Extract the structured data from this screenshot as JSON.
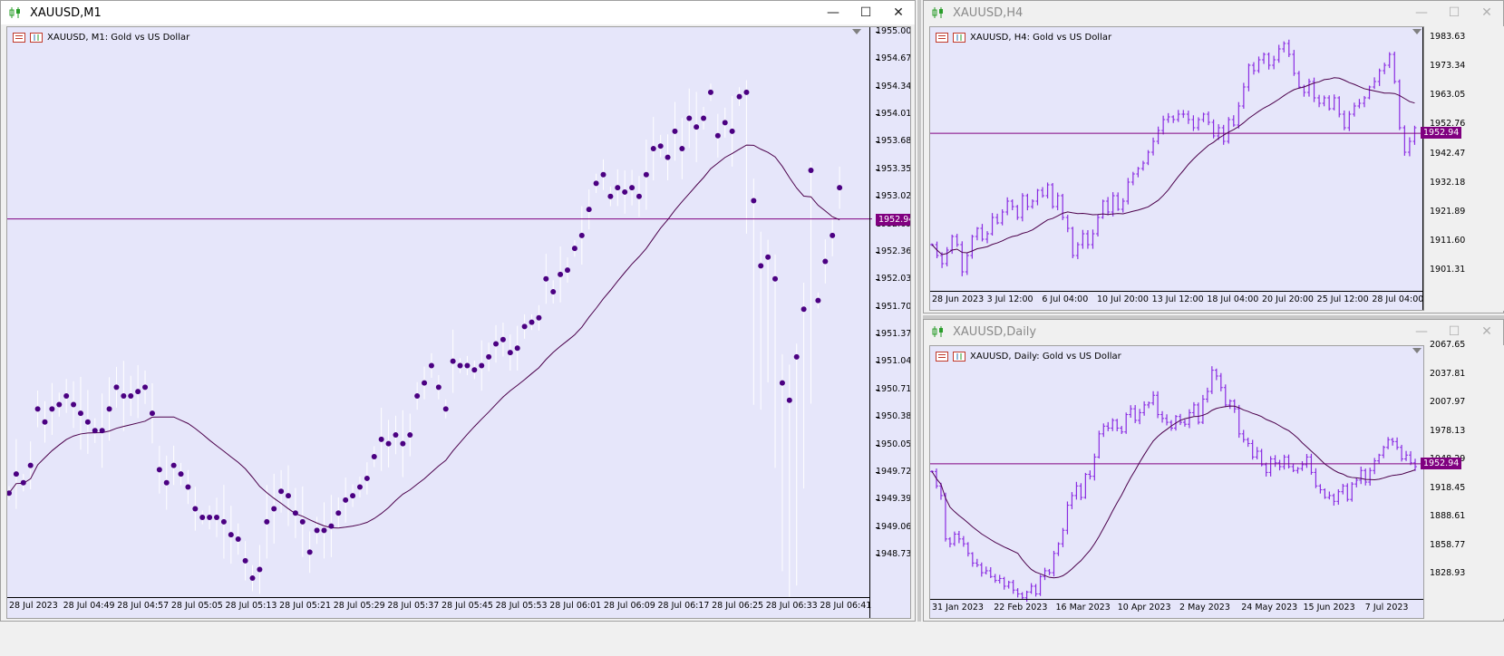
{
  "windows": {
    "m1": {
      "title": "XAUUSD,M1",
      "legend": "XAUUSD, M1:  Gold vs US Dollar",
      "price_tag": "1952.94",
      "y_ticks": [
        "1955.00",
        "1954.67",
        "1954.34",
        "1954.01",
        "1953.68",
        "1953.35",
        "1953.02",
        "1952.69",
        "1952.36",
        "1952.03",
        "1951.70",
        "1951.37",
        "1951.04",
        "1950.71",
        "1950.38",
        "1950.05",
        "1949.72",
        "1949.39",
        "1949.06",
        "1948.73"
      ],
      "x_ticks": [
        "28 Jul 2023",
        "28 Jul 04:49",
        "28 Jul 04:57",
        "28 Jul 05:05",
        "28 Jul 05:13",
        "28 Jul 05:21",
        "28 Jul 05:29",
        "28 Jul 05:37",
        "28 Jul 05:45",
        "28 Jul 05:53",
        "28 Jul 06:01",
        "28 Jul 06:09",
        "28 Jul 06:17",
        "28 Jul 06:25",
        "28 Jul 06:33",
        "28 Jul 06:41"
      ]
    },
    "h4": {
      "title": "XAUUSD,H4",
      "legend": "XAUUSD, H4:  Gold vs US Dollar",
      "price_tag": "1952.94",
      "y_ticks": [
        "1983.63",
        "1973.34",
        "1963.05",
        "1952.76",
        "1942.47",
        "1932.18",
        "1921.89",
        "1911.60",
        "1901.31"
      ],
      "x_ticks": [
        "28 Jun 2023",
        "3 Jul 12:00",
        "6 Jul 04:00",
        "10 Jul 20:00",
        "13 Jul 12:00",
        "18 Jul 04:00",
        "20 Jul 20:00",
        "25 Jul 12:00",
        "28 Jul 04:00"
      ]
    },
    "daily": {
      "title": "XAUUSD,Daily",
      "legend": "XAUUSD, Daily:  Gold vs US Dollar",
      "price_tag": "1952.94",
      "y_ticks": [
        "2067.65",
        "2037.81",
        "2007.97",
        "1978.13",
        "1948.29",
        "1918.45",
        "1888.61",
        "1858.77",
        "1828.93"
      ],
      "x_ticks": [
        "31 Jan 2023",
        "22 Feb 2023",
        "16 Mar 2023",
        "10 Apr 2023",
        "2 May 2023",
        "24 May 2023",
        "15 Jun 2023",
        "7 Jul 2023"
      ]
    }
  },
  "controls": {
    "minimize": "—",
    "maximize": "☐",
    "close": "✕"
  },
  "colors": {
    "chart_bg": "#e6e6fa",
    "bar": "#8a2be2",
    "dot": "#4b0082",
    "line": "#800080",
    "ma": "#4b004b"
  },
  "chart_data": [
    {
      "type": "scatter",
      "name": "XAUUSD M1",
      "ylim": [
        1948.55,
        1955.15
      ],
      "current_price": 1952.94,
      "close": [
        1949.78,
        1950.0,
        1949.9,
        1950.1,
        1950.75,
        1950.6,
        1950.75,
        1950.8,
        1950.9,
        1950.8,
        1950.7,
        1950.6,
        1950.5,
        1950.5,
        1950.75,
        1951.0,
        1950.9,
        1950.9,
        1950.95,
        1951.0,
        1950.7,
        1950.05,
        1949.9,
        1950.1,
        1950.0,
        1949.85,
        1949.6,
        1949.5,
        1949.5,
        1949.5,
        1949.45,
        1949.3,
        1949.25,
        1949.0,
        1948.8,
        1948.9,
        1949.45,
        1949.6,
        1949.8,
        1949.75,
        1949.55,
        1949.45,
        1949.1,
        1949.35,
        1949.35,
        1949.4,
        1949.55,
        1949.7,
        1949.75,
        1949.85,
        1949.95,
        1950.2,
        1950.4,
        1950.35,
        1950.45,
        1950.35,
        1950.45,
        1950.9,
        1951.05,
        1951.25,
        1951.0,
        1950.75,
        1951.3,
        1951.25,
        1951.25,
        1951.2,
        1951.25,
        1951.35,
        1951.5,
        1951.55,
        1951.4,
        1951.45,
        1951.7,
        1951.75,
        1951.8,
        1952.25,
        1952.1,
        1952.3,
        1952.35,
        1952.6,
        1952.75,
        1953.05,
        1953.35,
        1953.45,
        1953.2,
        1953.3,
        1953.25,
        1953.3,
        1953.2,
        1953.45,
        1953.75,
        1953.78,
        1953.65,
        1953.95,
        1953.75,
        1954.1,
        1954.0,
        1954.1,
        1954.4,
        1953.9,
        1954.05,
        1953.95,
        1954.35,
        1954.4,
        1953.15,
        1952.4,
        1952.5,
        1952.25,
        1951.05,
        1950.85,
        1951.35,
        1951.9,
        1953.5,
        1952.0,
        1952.45,
        1952.75,
        1953.3
      ],
      "ma_period": 20
    },
    {
      "type": "bar",
      "name": "XAUUSD H4 (OHLC)",
      "ylim": [
        1894,
        1992
      ],
      "current_price": 1952.94,
      "close": [
        1912,
        1908,
        1905,
        1910,
        1915,
        1912,
        1902,
        1908,
        1915,
        1918,
        1914,
        1916,
        1922,
        1920,
        1924,
        1928,
        1926,
        1922,
        1930,
        1926,
        1928,
        1932,
        1930,
        1934,
        1926,
        1930,
        1922,
        1918,
        1908,
        1912,
        1916,
        1912,
        1916,
        1922,
        1928,
        1924,
        1930,
        1925,
        1928,
        1935,
        1938,
        1940,
        1942,
        1946,
        1950,
        1954,
        1958,
        1959,
        1958,
        1960,
        1960,
        1958,
        1955,
        1958,
        1960,
        1957,
        1952,
        1955,
        1950,
        1958,
        1956,
        1963,
        1970,
        1978,
        1976,
        1980,
        1982,
        1978,
        1980,
        1984,
        1986,
        1982,
        1975,
        1970,
        1968,
        1972,
        1966,
        1964,
        1966,
        1962,
        1966,
        1960,
        1955,
        1960,
        1963,
        1964,
        1966,
        1970,
        1972,
        1976,
        1978,
        1982,
        1972,
        1955,
        1946,
        1950,
        1955
      ],
      "ma_period": 20
    },
    {
      "type": "bar",
      "name": "XAUUSD Daily (OHLC)",
      "ylim": [
        1810,
        2075
      ],
      "current_price": 1952.94,
      "close": [
        1945,
        1930,
        1920,
        1875,
        1870,
        1880,
        1875,
        1870,
        1860,
        1850,
        1848,
        1840,
        1842,
        1836,
        1832,
        1834,
        1826,
        1830,
        1822,
        1818,
        1814,
        1820,
        1826,
        1818,
        1836,
        1842,
        1840,
        1860,
        1870,
        1884,
        1910,
        1920,
        1930,
        1918,
        1942,
        1940,
        1960,
        1984,
        1992,
        1990,
        1998,
        1990,
        1986,
        2004,
        2010,
        1998,
        2006,
        2014,
        2016,
        2024,
        2004,
        2000,
        1996,
        1990,
        2002,
        1996,
        1994,
        2006,
        2014,
        1996,
        2020,
        2028,
        2050,
        2044,
        2032,
        2014,
        2018,
        2010,
        1984,
        1978,
        1974,
        1960,
        1966,
        1952,
        1944,
        1958,
        1954,
        1950,
        1960,
        1950,
        1946,
        1948,
        1952,
        1960,
        1944,
        1930,
        1926,
        1918,
        1920,
        1914,
        1924,
        1930,
        1916,
        1932,
        1936,
        1946,
        1934,
        1946,
        1956,
        1962,
        1970,
        1978,
        1976,
        1970,
        1958,
        1962,
        1954,
        1950
      ]
    }
  ]
}
